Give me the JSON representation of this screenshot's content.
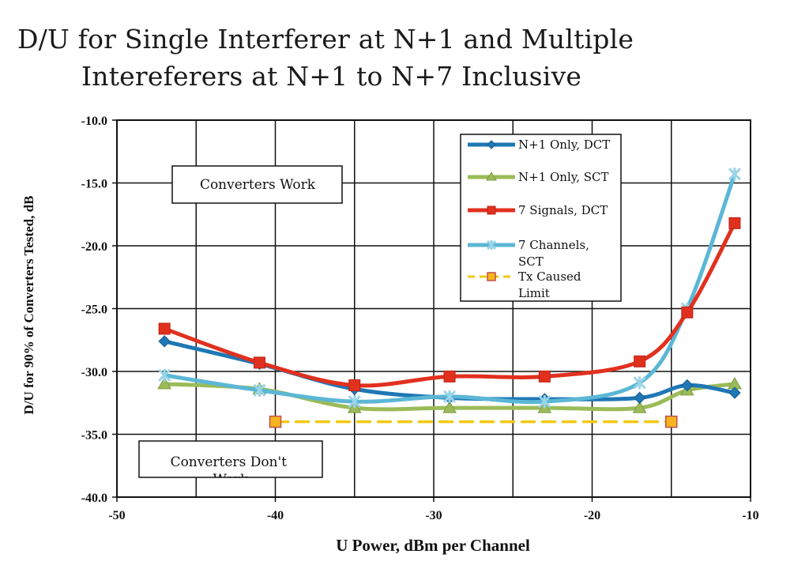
{
  "chart_data": {
    "type": "line",
    "title_lines": [
      "D/U for Single Interferer at N+1 and Multiple",
      "Intereferers at N+1 to N+7 Inclusive"
    ],
    "xlabel": "U Power, dBm per Channel",
    "ylabel": "D/U for 90% of Converters Tested, dB",
    "xlim": [
      -50,
      -10
    ],
    "ylim": [
      -40,
      -10
    ],
    "x_ticks": [
      "-50",
      "-40",
      "-30",
      "-20",
      "-10"
    ],
    "y_ticks": [
      "-10.0",
      "-15.0",
      "-20.0",
      "-25.0",
      "-30.0",
      "-35.0",
      "-40.0"
    ],
    "grid": true,
    "legend_position": "top-right",
    "annotations": [
      "Converters Work",
      "Converters Don't Work"
    ],
    "series": [
      {
        "name": "N+1 Only, DCT",
        "color": "#1f77b4",
        "marker": "diamond",
        "style": "solid",
        "x": [
          -47,
          -41,
          -35,
          -29,
          -23,
          -17,
          -14,
          -11
        ],
        "y": [
          -27.6,
          -29.4,
          -31.4,
          -32.1,
          -32.2,
          -32.1,
          -31.1,
          -31.7
        ]
      },
      {
        "name": "N+1 Only, SCT",
        "color": "#9bbb59",
        "marker": "triangle",
        "style": "solid",
        "x": [
          -47,
          -41,
          -35,
          -29,
          -23,
          -17,
          -14,
          -11
        ],
        "y": [
          -31.0,
          -31.4,
          -32.9,
          -32.9,
          -32.9,
          -32.9,
          -31.5,
          -31.0
        ]
      },
      {
        "name": "7 Signals, DCT",
        "color": "#e2301f",
        "marker": "square",
        "style": "solid",
        "x": [
          -47,
          -41,
          -35,
          -29,
          -23,
          -17,
          -14,
          -11
        ],
        "y": [
          -26.6,
          -29.3,
          -31.1,
          -30.4,
          -30.4,
          -29.2,
          -25.3,
          -18.2
        ]
      },
      {
        "name": "7 Channels, SCT",
        "color": "#5bb7d5",
        "marker": "x",
        "style": "solid",
        "x": [
          -47,
          -41,
          -35,
          -29,
          -23,
          -17,
          -14,
          -11
        ],
        "y": [
          -30.3,
          -31.5,
          -32.4,
          -32.0,
          -32.4,
          -30.9,
          -25.0,
          -14.3
        ]
      },
      {
        "name": "Tx Caused Limit",
        "color": "#f2c811",
        "marker": "square-open",
        "style": "dashed",
        "x": [
          -40,
          -15
        ],
        "y": [
          -34.0,
          -34.0
        ]
      }
    ]
  }
}
